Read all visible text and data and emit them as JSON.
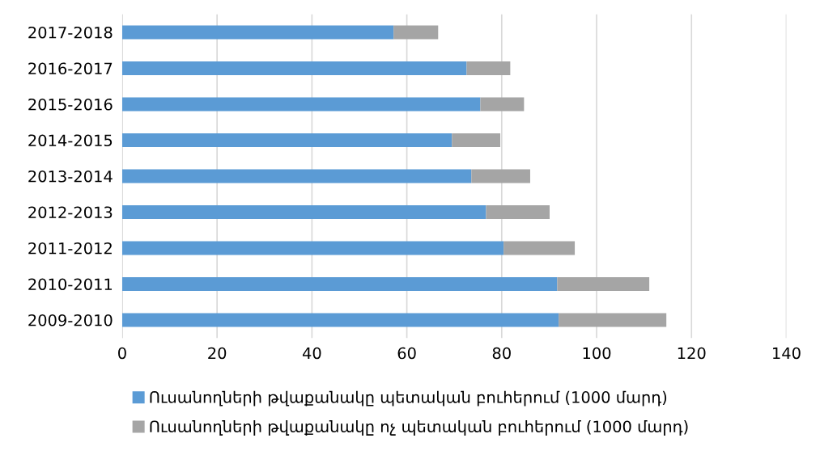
{
  "chart_data": {
    "type": "bar",
    "orientation": "horizontal",
    "stacked": true,
    "categories": [
      "2017-2018",
      "2016-2017",
      "2015-2016",
      "2014-2015",
      "2013-2014",
      "2012-2013",
      "2011-2012",
      "2010-2011",
      "2009-2010"
    ],
    "series": [
      {
        "name": "Ուսանողների թվաքանակը պետական բուհերում (1000 մարդ)",
        "color": "#5b9bd5",
        "values": [
          57.2,
          72.6,
          75.5,
          69.5,
          73.6,
          76.7,
          80.4,
          91.7,
          92.0
        ]
      },
      {
        "name": "Ուսանողների թվաքանակը ոչ պետական բուհերում (1000 մարդ)",
        "color": "#a5a5a5",
        "values": [
          9.4,
          9.2,
          9.2,
          10.2,
          12.4,
          13.4,
          15.0,
          19.4,
          22.7
        ]
      }
    ],
    "xlim": [
      0,
      140
    ],
    "xticks": [
      0,
      20,
      40,
      60,
      80,
      100,
      120,
      140
    ],
    "grid": "x",
    "legend": "bottom"
  }
}
